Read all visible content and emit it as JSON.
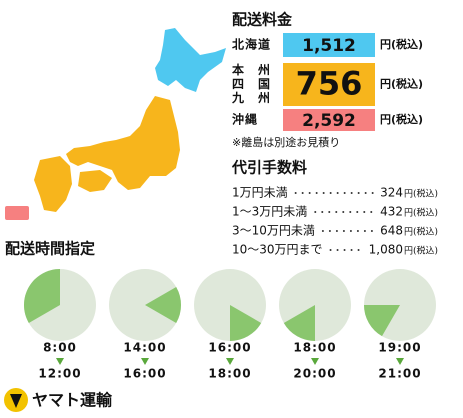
{
  "shipping_fee": {
    "title": "配送料金",
    "rows": [
      {
        "region": [
          "北海道"
        ],
        "price": "1,512",
        "unit": "円(税込)",
        "color": "#4fc8f0"
      },
      {
        "region": [
          "本州",
          "四国",
          "九州"
        ],
        "price": "756",
        "unit": "円(税込)",
        "color": "#f7b51c"
      },
      {
        "region": [
          "沖縄"
        ],
        "price": "2,592",
        "unit": "円(税込)",
        "color": "#f68080"
      }
    ],
    "note": "※離島は別途お見積り"
  },
  "cod_fee": {
    "title": "代引手数料",
    "rows": [
      {
        "range": "1万円未満",
        "price": "324",
        "unit": "円(税込)"
      },
      {
        "range": "1〜3万円未満",
        "price": "432",
        "unit": "円(税込)"
      },
      {
        "range": "3〜10万円未満",
        "price": "648",
        "unit": "円(税込)"
      },
      {
        "range": "10〜30万円まで",
        "price": "1,080",
        "unit": "円(税込)"
      }
    ]
  },
  "delivery_time": {
    "title": "配送時間指定",
    "slots": [
      {
        "start": "8:00",
        "end": "12:00"
      },
      {
        "start": "14:00",
        "end": "16:00"
      },
      {
        "start": "16:00",
        "end": "18:00"
      },
      {
        "start": "18:00",
        "end": "20:00"
      },
      {
        "start": "19:00",
        "end": "21:00"
      }
    ]
  },
  "logo": "ヤマト運輸"
}
